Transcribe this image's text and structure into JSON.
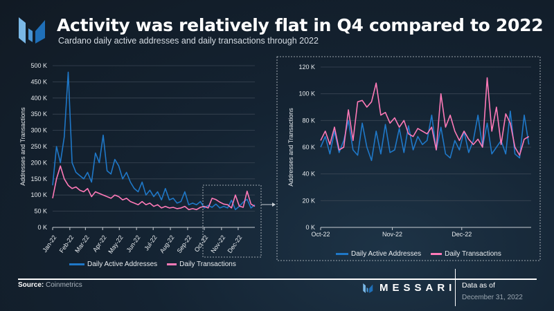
{
  "header": {
    "title": "Activity was relatively flat in Q4 compared to 2022",
    "subtitle": "Cardano daily active addresses and daily transactions through 2022",
    "logo": "messari-logo"
  },
  "colors": {
    "daily_active_addresses": "#1f78c8",
    "daily_transactions": "#ff7ab8",
    "grid": "#3a4654"
  },
  "chart_data": [
    {
      "type": "line",
      "ylabel": "Addresses and Transactions",
      "ylim": [
        0,
        500000
      ],
      "yticks": [
        "0 K",
        "50 K",
        "100 K",
        "150 K",
        "200 K",
        "250 K",
        "300 K",
        "350 K",
        "400 K",
        "450 K",
        "500 K"
      ],
      "xticks": [
        "Jan-22",
        "Feb-22",
        "Mar-22",
        "Apr-22",
        "May-22",
        "Jun-22",
        "Jul-22",
        "Aug-22",
        "Sep-22",
        "Oct-22",
        "Nov-22",
        "Dec-22"
      ],
      "grid": true,
      "legend": "bottom",
      "x": [
        "2022-01-01",
        "2022-01-08",
        "2022-01-15",
        "2022-01-22",
        "2022-01-29",
        "2022-02-05",
        "2022-02-12",
        "2022-02-19",
        "2022-02-26",
        "2022-03-05",
        "2022-03-12",
        "2022-03-19",
        "2022-03-26",
        "2022-04-02",
        "2022-04-09",
        "2022-04-16",
        "2022-04-23",
        "2022-04-30",
        "2022-05-07",
        "2022-05-14",
        "2022-05-21",
        "2022-05-28",
        "2022-06-04",
        "2022-06-11",
        "2022-06-18",
        "2022-06-25",
        "2022-07-02",
        "2022-07-09",
        "2022-07-16",
        "2022-07-23",
        "2022-07-30",
        "2022-08-06",
        "2022-08-13",
        "2022-08-20",
        "2022-08-27",
        "2022-09-03",
        "2022-09-10",
        "2022-09-17",
        "2022-09-24",
        "2022-10-01",
        "2022-10-08",
        "2022-10-15",
        "2022-10-22",
        "2022-10-29",
        "2022-11-05",
        "2022-11-12",
        "2022-11-19",
        "2022-11-26",
        "2022-12-03",
        "2022-12-10",
        "2022-12-17",
        "2022-12-24",
        "2022-12-31"
      ],
      "series": [
        {
          "name": "Daily Active Addresses",
          "values": [
            130000,
            250000,
            200000,
            280000,
            480000,
            200000,
            170000,
            160000,
            150000,
            170000,
            140000,
            230000,
            200000,
            285000,
            175000,
            165000,
            210000,
            190000,
            150000,
            170000,
            140000,
            120000,
            110000,
            140000,
            100000,
            115000,
            95000,
            110000,
            85000,
            120000,
            85000,
            90000,
            75000,
            80000,
            110000,
            70000,
            75000,
            70000,
            80000,
            60000,
            68000,
            62000,
            72000,
            60000,
            65000,
            60000,
            84000,
            55000,
            65000,
            78000,
            87000,
            60000,
            70000
          ]
        },
        {
          "name": "Daily Transactions",
          "values": [
            90000,
            150000,
            190000,
            150000,
            130000,
            120000,
            125000,
            115000,
            110000,
            120000,
            95000,
            110000,
            105000,
            100000,
            95000,
            90000,
            100000,
            95000,
            85000,
            90000,
            80000,
            75000,
            70000,
            80000,
            70000,
            75000,
            65000,
            70000,
            60000,
            65000,
            60000,
            62000,
            58000,
            60000,
            65000,
            55000,
            58000,
            55000,
            62000,
            65000,
            60000,
            90000,
            86000,
            78000,
            72000,
            70000,
            60000,
            100000,
            66000,
            62000,
            112000,
            72000,
            65000
          ]
        }
      ]
    },
    {
      "type": "line",
      "ylabel": "Addresses and Transactions",
      "ylim": [
        0,
        120000
      ],
      "yticks": [
        "0 K",
        "20 K",
        "40 K",
        "60 K",
        "80 K",
        "100 K",
        "120 K"
      ],
      "xticks": [
        "Oct-22",
        "Nov-22",
        "Dec-22"
      ],
      "grid": true,
      "legend": "bottom",
      "x": [
        "2022-10-01",
        "2022-10-03",
        "2022-10-05",
        "2022-10-07",
        "2022-10-09",
        "2022-10-11",
        "2022-10-13",
        "2022-10-15",
        "2022-10-17",
        "2022-10-19",
        "2022-10-21",
        "2022-10-23",
        "2022-10-25",
        "2022-10-27",
        "2022-10-29",
        "2022-10-31",
        "2022-11-02",
        "2022-11-04",
        "2022-11-06",
        "2022-11-08",
        "2022-11-10",
        "2022-11-12",
        "2022-11-14",
        "2022-11-16",
        "2022-11-18",
        "2022-11-20",
        "2022-11-22",
        "2022-11-24",
        "2022-11-26",
        "2022-11-28",
        "2022-11-30",
        "2022-12-02",
        "2022-12-04",
        "2022-12-06",
        "2022-12-08",
        "2022-12-10",
        "2022-12-12",
        "2022-12-14",
        "2022-12-16",
        "2022-12-18",
        "2022-12-20",
        "2022-12-22",
        "2022-12-24",
        "2022-12-26",
        "2022-12-28",
        "2022-12-30"
      ],
      "series": [
        {
          "name": "Daily Active Addresses",
          "values": [
            60000,
            68000,
            55000,
            72000,
            56000,
            65000,
            80000,
            58000,
            54000,
            78000,
            60000,
            50000,
            72000,
            55000,
            77000,
            56000,
            58000,
            74000,
            56000,
            76000,
            58000,
            68000,
            62000,
            65000,
            84000,
            58000,
            75000,
            55000,
            52000,
            65000,
            58000,
            72000,
            56000,
            65000,
            84000,
            60000,
            78000,
            55000,
            60000,
            65000,
            55000,
            87000,
            55000,
            52000,
            84000,
            62000
          ]
        },
        {
          "name": "Daily Transactions",
          "values": [
            65000,
            72000,
            62000,
            75000,
            58000,
            60000,
            88000,
            65000,
            94000,
            95000,
            90000,
            94000,
            108000,
            84000,
            86000,
            78000,
            82000,
            75000,
            80000,
            70000,
            68000,
            74000,
            72000,
            70000,
            75000,
            58000,
            100000,
            75000,
            84000,
            72000,
            65000,
            72000,
            66000,
            62000,
            66000,
            60000,
            112000,
            72000,
            90000,
            62000,
            85000,
            78000,
            60000,
            54000,
            66000,
            68000
          ]
        }
      ]
    }
  ],
  "legend": {
    "daa": "Daily Active Addresses",
    "dt": "Daily Transactions"
  },
  "footer": {
    "source_label": "Source:",
    "source": "Coinmetrics",
    "brand": "MESSARI",
    "data_as_of": "Data as of",
    "date": "December 31, 2022"
  }
}
